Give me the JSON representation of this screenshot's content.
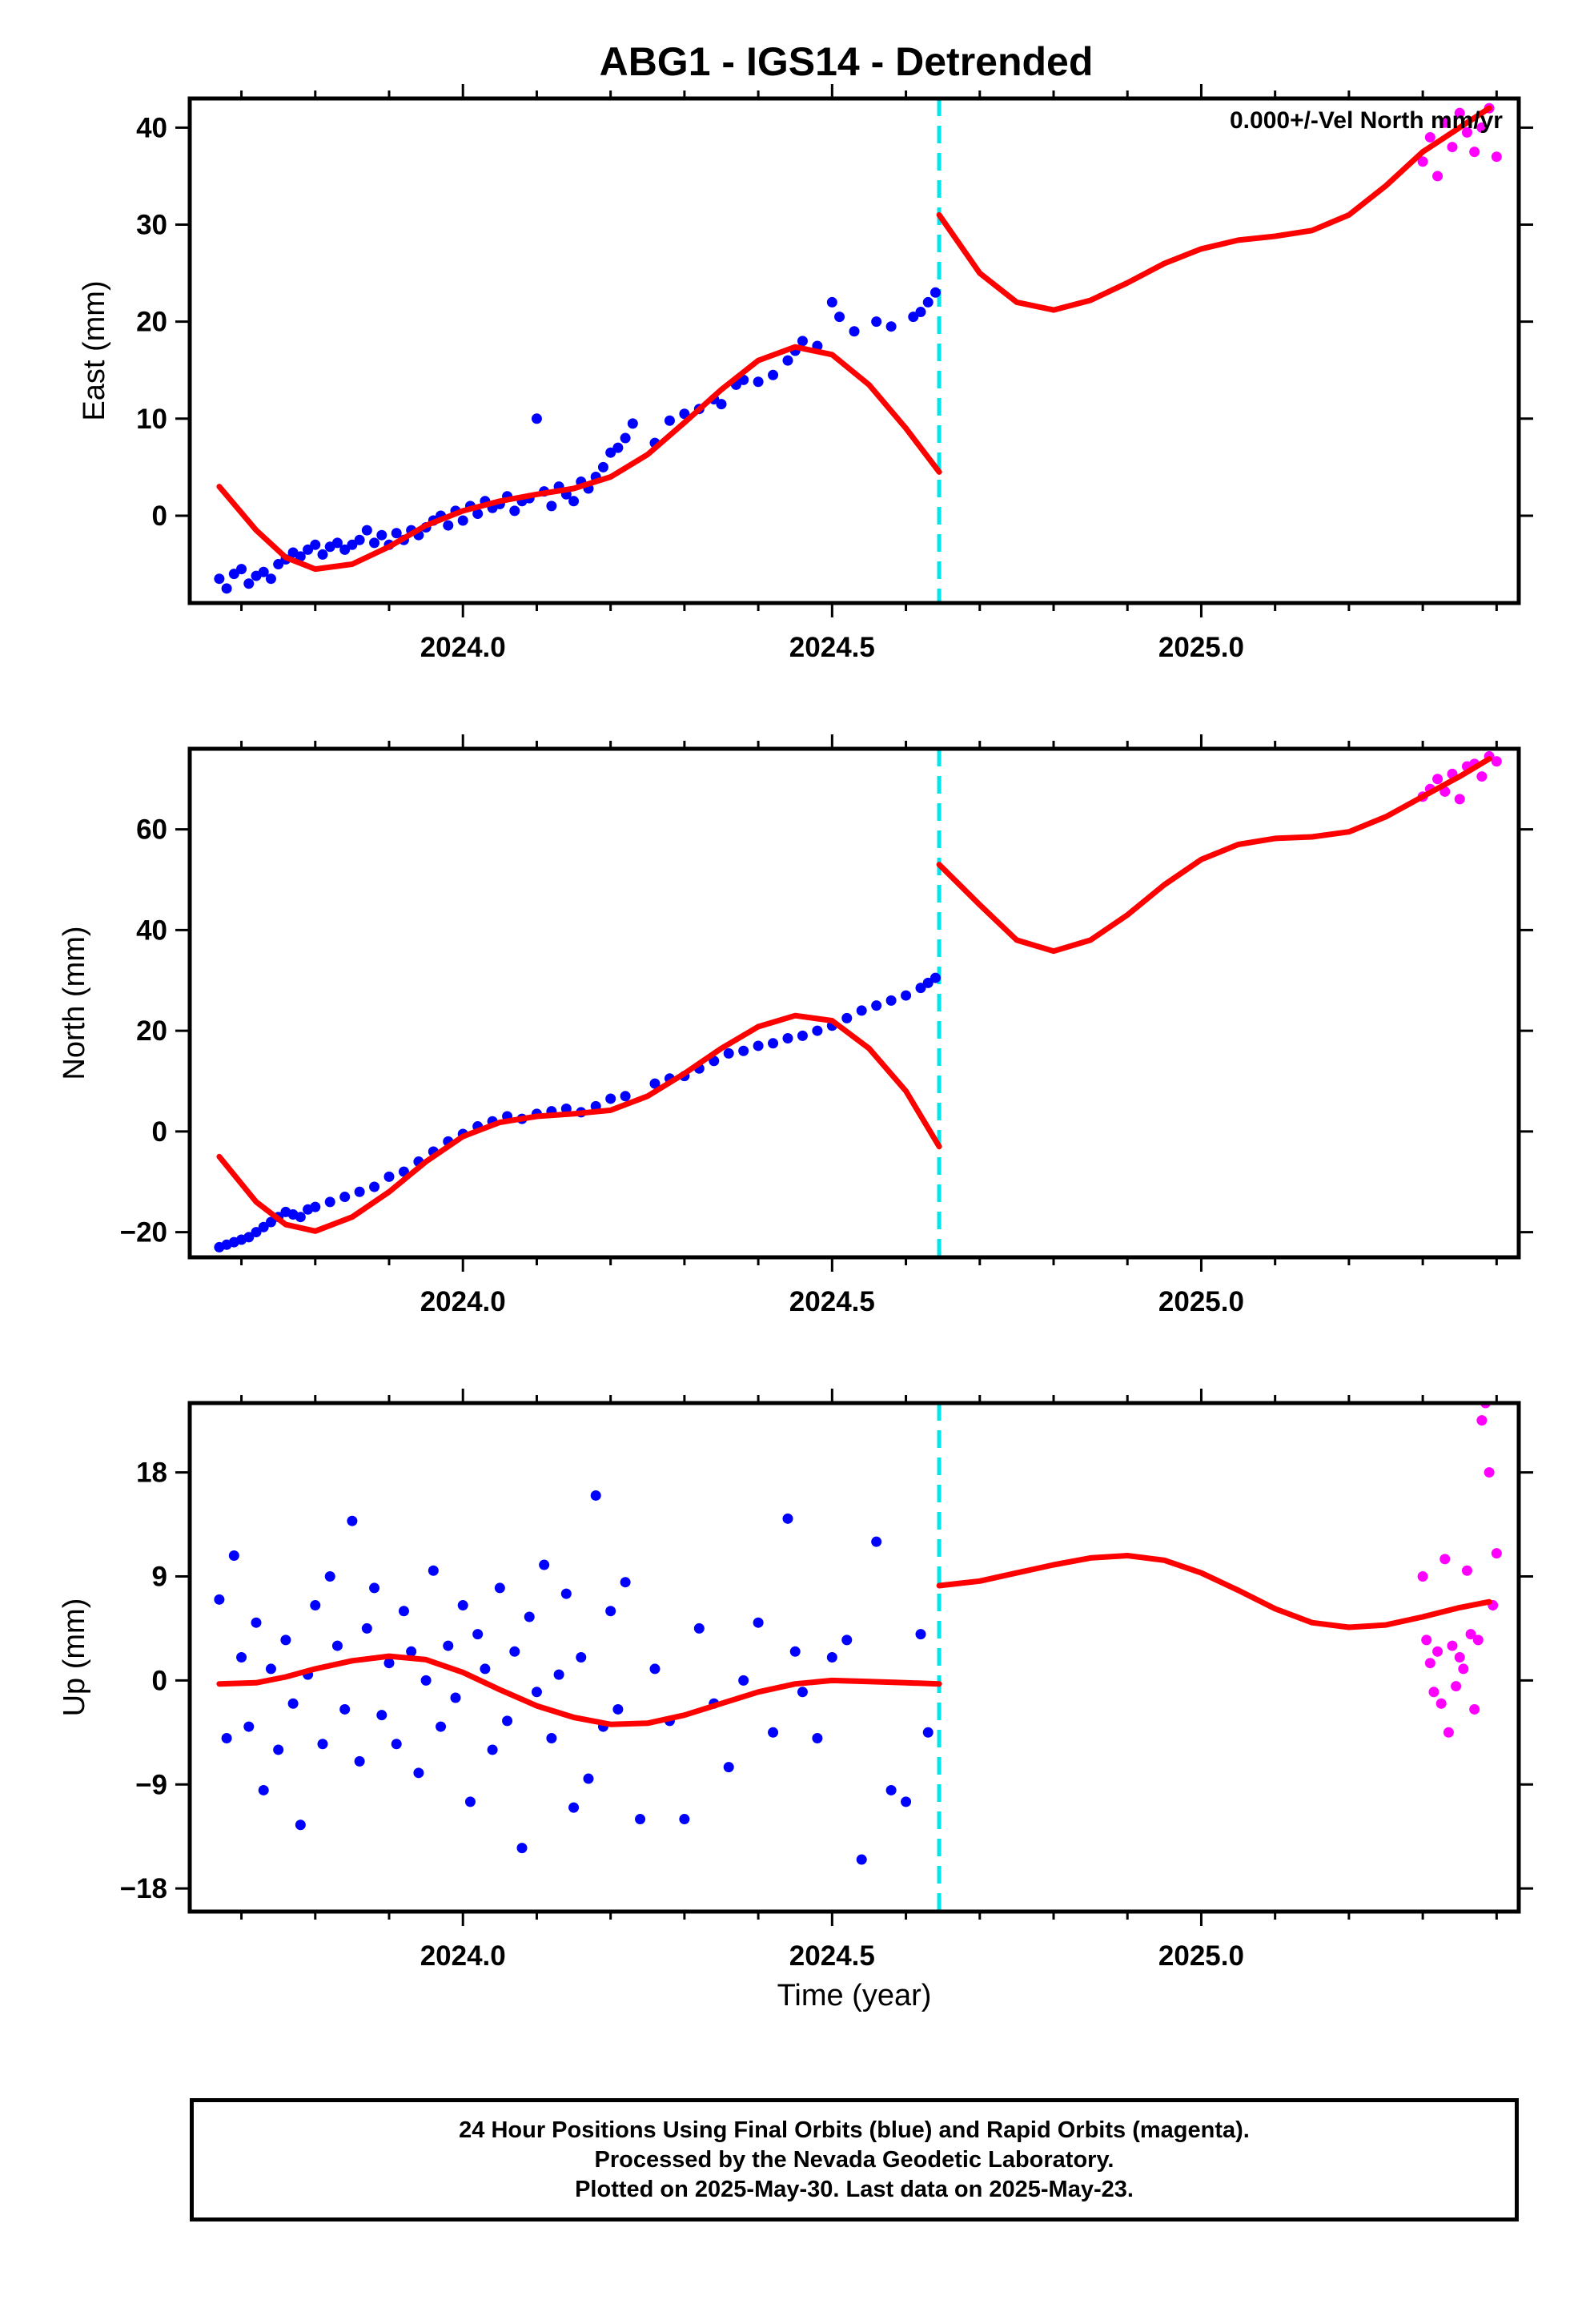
{
  "title": "ABG1 - IGS14 - Detrended",
  "colors": {
    "final": "#0000ff",
    "rapid": "#ff00ff",
    "model": "#ff0000",
    "event": "#00e5ee",
    "frame": "#000000"
  },
  "footer": {
    "lines": [
      "24 Hour Positions Using Final Orbits (blue) and Rapid Orbits (magenta).",
      "Processed by the Nevada Geodetic Laboratory.",
      "Plotted on 2025-May-30. Last data on 2025-May-23."
    ]
  },
  "chart_data": [
    {
      "type": "scatter",
      "ylabel": "East (mm)",
      "annotation": "0.000+/-Vel North mm/yr",
      "xlim": [
        2023.63,
        2025.43
      ],
      "ylim": [
        -9,
        43
      ],
      "yticks": [
        0,
        10,
        20,
        30,
        40
      ],
      "xticks": [
        2024.0,
        2024.5,
        2025.0
      ],
      "xtick_labels": [
        "2024.0",
        "2024.5",
        "2025.0"
      ],
      "event_line_x": 2024.645,
      "model_pre": {
        "x": [
          2023.67,
          2023.72,
          2023.76,
          2023.8,
          2023.85,
          2023.9,
          2023.95,
          2024.0,
          2024.05,
          2024.1,
          2024.15,
          2024.2,
          2024.25,
          2024.3,
          2024.35,
          2024.4,
          2024.45,
          2024.5,
          2024.55,
          2024.6,
          2024.645
        ],
        "y": [
          3,
          -1.5,
          -4.3,
          -5.5,
          -5.0,
          -3.2,
          -1.0,
          0.5,
          1.5,
          2.2,
          2.8,
          4.0,
          6.3,
          9.6,
          13.0,
          16.0,
          17.4,
          16.6,
          13.5,
          9.0,
          4.5
        ]
      },
      "model_post": {
        "x": [
          2024.645,
          2024.7,
          2024.75,
          2024.8,
          2024.85,
          2024.9,
          2024.95,
          2025.0,
          2025.05,
          2025.1,
          2025.15,
          2025.2,
          2025.25,
          2025.3,
          2025.35,
          2025.39
        ],
        "y": [
          31,
          25.0,
          22.0,
          21.2,
          22.2,
          24.0,
          26.0,
          27.5,
          28.4,
          28.8,
          29.4,
          31.0,
          34.0,
          37.5,
          40.0,
          42.0
        ]
      },
      "final_points": {
        "x": [
          2023.67,
          2023.68,
          2023.69,
          2023.7,
          2023.71,
          2023.72,
          2023.73,
          2023.74,
          2023.75,
          2023.76,
          2023.77,
          2023.78,
          2023.79,
          2023.8,
          2023.81,
          2023.82,
          2023.83,
          2023.84,
          2023.85,
          2023.86,
          2023.87,
          2023.88,
          2023.89,
          2023.9,
          2023.91,
          2023.92,
          2023.93,
          2023.94,
          2023.95,
          2023.96,
          2023.97,
          2023.98,
          2023.99,
          2024.0,
          2024.01,
          2024.02,
          2024.03,
          2024.04,
          2024.05,
          2024.06,
          2024.07,
          2024.08,
          2024.09,
          2024.1,
          2024.11,
          2024.12,
          2024.13,
          2024.14,
          2024.15,
          2024.16,
          2024.17,
          2024.18,
          2024.19,
          2024.2,
          2024.21,
          2024.22,
          2024.23,
          2024.26,
          2024.28,
          2024.3,
          2024.32,
          2024.34,
          2024.35,
          2024.37,
          2024.38,
          2024.4,
          2024.42,
          2024.44,
          2024.45,
          2024.46,
          2024.48,
          2024.5,
          2024.51,
          2024.53,
          2024.56,
          2024.58,
          2024.61,
          2024.62,
          2024.63,
          2024.64
        ],
        "y": [
          -6.5,
          -7.5,
          -6.0,
          -5.5,
          -7.0,
          -6.2,
          -5.8,
          -6.5,
          -5.0,
          -4.5,
          -3.8,
          -4.2,
          -3.5,
          -3.0,
          -4.0,
          -3.2,
          -2.8,
          -3.5,
          -3.0,
          -2.5,
          -1.5,
          -2.8,
          -2.0,
          -3.0,
          -1.8,
          -2.5,
          -1.5,
          -2.0,
          -1.2,
          -0.5,
          0.0,
          -1.0,
          0.5,
          -0.5,
          1.0,
          0.2,
          1.5,
          0.8,
          1.2,
          2.0,
          0.5,
          1.5,
          1.8,
          10.0,
          2.5,
          1.0,
          3.0,
          2.2,
          1.5,
          3.5,
          2.8,
          4.0,
          5.0,
          6.5,
          7.0,
          8.0,
          9.5,
          7.5,
          9.8,
          10.5,
          11.0,
          12.0,
          11.5,
          13.5,
          14.0,
          13.8,
          14.5,
          16.0,
          17.0,
          18.0,
          17.5,
          22.0,
          20.5,
          19.0,
          20.0,
          19.5,
          20.5,
          21.0,
          22.0,
          23.0
        ]
      },
      "rapid_points": {
        "x": [
          2025.3,
          2025.31,
          2025.32,
          2025.33,
          2025.34,
          2025.35,
          2025.36,
          2025.37,
          2025.38,
          2025.39,
          2025.4
        ],
        "y": [
          36.5,
          39.0,
          35.0,
          40.5,
          38.0,
          41.5,
          39.5,
          37.5,
          40.0,
          42.0,
          37.0
        ]
      }
    },
    {
      "type": "scatter",
      "ylabel": "North (mm)",
      "xlim": [
        2023.63,
        2025.43
      ],
      "ylim": [
        -25,
        76
      ],
      "yticks": [
        -20,
        0,
        20,
        40,
        60
      ],
      "ytick_labels": [
        "−20",
        "0",
        "20",
        "40",
        "60"
      ],
      "xticks": [
        2024.0,
        2024.5,
        2025.0
      ],
      "xtick_labels": [
        "2024.0",
        "2024.5",
        "2025.0"
      ],
      "event_line_x": 2024.645,
      "model_pre": {
        "x": [
          2023.67,
          2023.72,
          2023.76,
          2023.8,
          2023.85,
          2023.9,
          2023.95,
          2024.0,
          2024.05,
          2024.1,
          2024.15,
          2024.2,
          2024.25,
          2024.3,
          2024.35,
          2024.4,
          2024.45,
          2024.5,
          2024.55,
          2024.6,
          2024.645
        ],
        "y": [
          -5,
          -14.0,
          -18.5,
          -19.8,
          -17.0,
          -12.0,
          -6.0,
          -1.0,
          1.8,
          3.0,
          3.5,
          4.2,
          7.0,
          11.5,
          16.5,
          20.8,
          23.0,
          22.0,
          16.5,
          8.0,
          -3.0
        ]
      },
      "model_post": {
        "x": [
          2024.645,
          2024.7,
          2024.75,
          2024.8,
          2024.85,
          2024.9,
          2024.95,
          2025.0,
          2025.05,
          2025.1,
          2025.15,
          2025.2,
          2025.25,
          2025.3,
          2025.35,
          2025.39
        ],
        "y": [
          53,
          45.0,
          38.0,
          35.8,
          38.0,
          43.0,
          49.0,
          54.0,
          57.0,
          58.2,
          58.5,
          59.5,
          62.5,
          66.5,
          70.5,
          74.0
        ]
      },
      "final_points": {
        "x": [
          2023.67,
          2023.68,
          2023.69,
          2023.7,
          2023.71,
          2023.72,
          2023.73,
          2023.74,
          2023.75,
          2023.76,
          2023.77,
          2023.78,
          2023.79,
          2023.8,
          2023.82,
          2023.84,
          2023.86,
          2023.88,
          2023.9,
          2023.92,
          2023.94,
          2023.96,
          2023.98,
          2024.0,
          2024.02,
          2024.04,
          2024.06,
          2024.08,
          2024.1,
          2024.12,
          2024.14,
          2024.16,
          2024.18,
          2024.2,
          2024.22,
          2024.26,
          2024.28,
          2024.3,
          2024.32,
          2024.34,
          2024.36,
          2024.38,
          2024.4,
          2024.42,
          2024.44,
          2024.46,
          2024.48,
          2024.5,
          2024.52,
          2024.54,
          2024.56,
          2024.58,
          2024.6,
          2024.62,
          2024.63,
          2024.64
        ],
        "y": [
          -23,
          -22.5,
          -22,
          -21.5,
          -21,
          -20,
          -19,
          -18,
          -17,
          -16,
          -16.5,
          -17,
          -15.5,
          -15,
          -14,
          -13,
          -12,
          -11,
          -9,
          -8,
          -6,
          -4,
          -2,
          -0.5,
          1.0,
          2.0,
          3.0,
          2.5,
          3.5,
          4.0,
          4.5,
          3.8,
          5.0,
          6.5,
          7.0,
          9.5,
          10.5,
          11.0,
          12.5,
          14.0,
          15.5,
          16.0,
          17.0,
          17.5,
          18.5,
          19.0,
          20.0,
          21.0,
          22.5,
          24.0,
          25.0,
          26.0,
          27.0,
          28.5,
          29.5,
          30.5
        ]
      },
      "rapid_points": {
        "x": [
          2025.3,
          2025.31,
          2025.32,
          2025.33,
          2025.34,
          2025.35,
          2025.36,
          2025.37,
          2025.38,
          2025.39,
          2025.4
        ],
        "y": [
          66.5,
          68.0,
          70.0,
          67.5,
          71.0,
          66.0,
          72.5,
          73.0,
          70.5,
          74.5,
          73.5
        ]
      }
    },
    {
      "type": "scatter",
      "ylabel": "Up (mm)",
      "xlabel": "Time (year)",
      "xlim": [
        2023.63,
        2025.43
      ],
      "ylim": [
        -20,
        24
      ],
      "yticks": [
        -18,
        -9,
        0,
        9,
        18
      ],
      "ytick_labels": [
        "−18",
        "−9",
        "0",
        "9",
        "18"
      ],
      "xticks": [
        2024.0,
        2024.5,
        2025.0
      ],
      "xtick_labels": [
        "2024.0",
        "2024.5",
        "2025.0"
      ],
      "event_line_x": 2024.645,
      "model_pre": {
        "x": [
          2023.67,
          2023.72,
          2023.76,
          2023.8,
          2023.85,
          2023.9,
          2023.95,
          2024.0,
          2024.05,
          2024.1,
          2024.15,
          2024.2,
          2024.25,
          2024.3,
          2024.35,
          2024.4,
          2024.45,
          2024.5,
          2024.55,
          2024.6,
          2024.645
        ],
        "y": [
          -0.3,
          -0.2,
          0.3,
          1.0,
          1.7,
          2.1,
          1.8,
          0.7,
          -0.8,
          -2.2,
          -3.2,
          -3.8,
          -3.7,
          -3.0,
          -2.0,
          -1.0,
          -0.3,
          0.0,
          -0.1,
          -0.2,
          -0.3
        ]
      },
      "model_post": {
        "x": [
          2024.645,
          2024.7,
          2024.75,
          2024.8,
          2024.85,
          2024.9,
          2024.95,
          2025.0,
          2025.05,
          2025.1,
          2025.15,
          2025.2,
          2025.25,
          2025.3,
          2025.35,
          2025.39
        ],
        "y": [
          8.2,
          8.6,
          9.3,
          10.0,
          10.6,
          10.8,
          10.4,
          9.3,
          7.8,
          6.2,
          5.0,
          4.6,
          4.8,
          5.5,
          6.3,
          6.8
        ]
      },
      "final_points": {
        "x": [
          2023.67,
          2023.68,
          2023.69,
          2023.7,
          2023.71,
          2023.72,
          2023.73,
          2023.74,
          2023.75,
          2023.76,
          2023.77,
          2023.78,
          2023.79,
          2023.8,
          2023.81,
          2023.82,
          2023.83,
          2023.84,
          2023.85,
          2023.86,
          2023.87,
          2023.88,
          2023.89,
          2023.9,
          2023.91,
          2023.92,
          2023.93,
          2023.94,
          2023.95,
          2023.96,
          2023.97,
          2023.98,
          2023.99,
          2024.0,
          2024.01,
          2024.02,
          2024.03,
          2024.04,
          2024.05,
          2024.06,
          2024.07,
          2024.08,
          2024.09,
          2024.1,
          2024.11,
          2024.12,
          2024.13,
          2024.14,
          2024.15,
          2024.16,
          2024.17,
          2024.18,
          2024.19,
          2024.2,
          2024.21,
          2024.22,
          2024.24,
          2024.26,
          2024.28,
          2024.3,
          2024.32,
          2024.34,
          2024.36,
          2024.38,
          2024.4,
          2024.42,
          2024.44,
          2024.45,
          2024.46,
          2024.48,
          2024.5,
          2024.52,
          2024.54,
          2024.56,
          2024.58,
          2024.6,
          2024.62,
          2024.63
        ],
        "y": [
          7.0,
          -5.0,
          10.8,
          2.0,
          -4.0,
          5.0,
          -9.5,
          1.0,
          -6.0,
          3.5,
          -2.0,
          -12.5,
          0.5,
          6.5,
          -5.5,
          9.0,
          3.0,
          -2.5,
          13.8,
          -7.0,
          4.5,
          8.0,
          -3.0,
          1.5,
          -5.5,
          6.0,
          2.5,
          -8.0,
          0.0,
          9.5,
          -4.0,
          3.0,
          -1.5,
          6.5,
          -10.5,
          4.0,
          1.0,
          -6.0,
          8.0,
          -3.5,
          2.5,
          -14.5,
          5.5,
          -1.0,
          10.0,
          -5.0,
          0.5,
          7.5,
          -11.0,
          2.0,
          -8.5,
          16.0,
          -4.0,
          6.0,
          -2.5,
          8.5,
          -12.0,
          1.0,
          -3.5,
          -12.0,
          4.5,
          -2.0,
          -7.5,
          0.0,
          5.0,
          -4.5,
          14.0,
          2.5,
          -1.0,
          -5.0,
          2.0,
          3.5,
          -15.5,
          12.0,
          -9.5,
          -10.5,
          4.0,
          -4.5
        ]
      },
      "rapid_points": {
        "x": [
          2025.3,
          2025.305,
          2025.31,
          2025.315,
          2025.32,
          2025.325,
          2025.33,
          2025.335,
          2025.34,
          2025.345,
          2025.35,
          2025.355,
          2025.36,
          2025.365,
          2025.37,
          2025.375,
          2025.38,
          2025.385,
          2025.39,
          2025.395,
          2025.4
        ],
        "y": [
          9.0,
          3.5,
          1.5,
          -1.0,
          2.5,
          -2.0,
          10.5,
          -4.5,
          3.0,
          -0.5,
          2.0,
          1.0,
          9.5,
          4.0,
          -2.5,
          3.5,
          22.5,
          24.0,
          18.0,
          6.5,
          11.0
        ]
      }
    }
  ]
}
